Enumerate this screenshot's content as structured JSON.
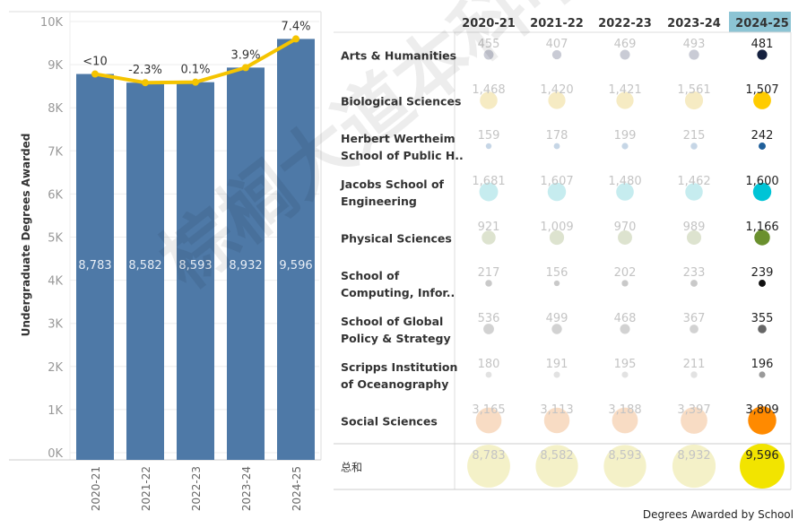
{
  "bar_chart": {
    "chart_data": {
      "type": "bar",
      "categories": [
        "2020-21",
        "2021-22",
        "2022-23",
        "2023-24",
        "2024-25"
      ],
      "values": [
        8783,
        8582,
        8593,
        8932,
        9596
      ],
      "value_labels": [
        "8,783",
        "8,582",
        "8,593",
        "8,932",
        "9,596"
      ],
      "line_series": {
        "values": [
          8783,
          8582,
          8593,
          8932,
          9596
        ],
        "labels": [
          "<10",
          "-2.3%",
          "0.1%",
          "3.9%",
          "7.4%"
        ]
      },
      "ylabel": "Undergraduate Degrees Awarded",
      "ylim": [
        0,
        10000
      ],
      "yticks": [
        "0K",
        "1K",
        "2K",
        "3K",
        "4K",
        "5K",
        "6K",
        "7K",
        "8K",
        "9K",
        "10K"
      ],
      "grid": true,
      "colors": {
        "bar": "#4e79a7",
        "line": "#f5c400"
      }
    }
  },
  "table": {
    "chart_data": {
      "type": "table",
      "columns": [
        "2020-21",
        "2021-22",
        "2022-23",
        "2023-24",
        "2024-25"
      ],
      "highlight_column": "2024-25",
      "rows": [
        {
          "label": [
            "Arts & Humanities"
          ],
          "values": [
            455,
            407,
            469,
            493,
            481
          ],
          "labels": [
            "455",
            "407",
            "469",
            "493",
            "481"
          ],
          "color": "#15213f",
          "faded": "#c9cbd5"
        },
        {
          "label": [
            "Biological Sciences"
          ],
          "values": [
            1468,
            1420,
            1421,
            1561,
            1507
          ],
          "labels": [
            "1,468",
            "1,420",
            "1,421",
            "1,561",
            "1,507"
          ],
          "color": "#ffcc00",
          "faded": "#f6ebc3"
        },
        {
          "label": [
            "Herbert Wertheim",
            "School of Public H.."
          ],
          "values": [
            159,
            178,
            199,
            215,
            242
          ],
          "labels": [
            "159",
            "178",
            "199",
            "215",
            "242"
          ],
          "color": "#1f5f9a",
          "faded": "#c6d6e6"
        },
        {
          "label": [
            "Jacobs School of",
            "Engineering"
          ],
          "values": [
            1681,
            1607,
            1480,
            1462,
            1600
          ],
          "labels": [
            "1,681",
            "1,607",
            "1,480",
            "1,462",
            "1,600"
          ],
          "color": "#00c4d6",
          "faded": "#c6ecef"
        },
        {
          "label": [
            "Physical Sciences"
          ],
          "values": [
            921,
            1009,
            970,
            989,
            1166
          ],
          "labels": [
            "921",
            "1,009",
            "970",
            "989",
            "1,166"
          ],
          "color": "#6a902e",
          "faded": "#dde3cf"
        },
        {
          "label": [
            "School of",
            "Computing, Infor.."
          ],
          "values": [
            217,
            156,
            202,
            233,
            239
          ],
          "labels": [
            "217",
            "156",
            "202",
            "233",
            "239"
          ],
          "color": "#111111",
          "faded": "#c9c9c9"
        },
        {
          "label": [
            "School of Global",
            "Policy & Strategy"
          ],
          "values": [
            536,
            499,
            468,
            367,
            355
          ],
          "labels": [
            "536",
            "499",
            "468",
            "367",
            "355"
          ],
          "color": "#666666",
          "faded": "#d2d2d2"
        },
        {
          "label": [
            "Scripps Institution",
            "of Oceanography"
          ],
          "values": [
            180,
            191,
            195,
            211,
            196
          ],
          "labels": [
            "180",
            "191",
            "195",
            "211",
            "196"
          ],
          "color": "#9a9a9a",
          "faded": "#e2e2e2"
        },
        {
          "label": [
            "Social Sciences"
          ],
          "values": [
            3165,
            3113,
            3188,
            3397,
            3809
          ],
          "labels": [
            "3,165",
            "3,113",
            "3,188",
            "3,397",
            "3,809"
          ],
          "color": "#ff8a00",
          "faded": "#f8dcc4"
        }
      ],
      "total": {
        "label": [
          "总和"
        ],
        "values": [
          8783,
          8582,
          8593,
          8932,
          9596
        ],
        "labels": [
          "8,783",
          "8,582",
          "8,593",
          "8,932",
          "9,596"
        ],
        "color": "#f2e400",
        "faded": "#f4f1c8"
      },
      "colors": {
        "header_highlight": "#8cc4d4"
      }
    },
    "caption": "Degrees Awarded by School"
  },
  "watermark": "棕榈大道本科申请"
}
